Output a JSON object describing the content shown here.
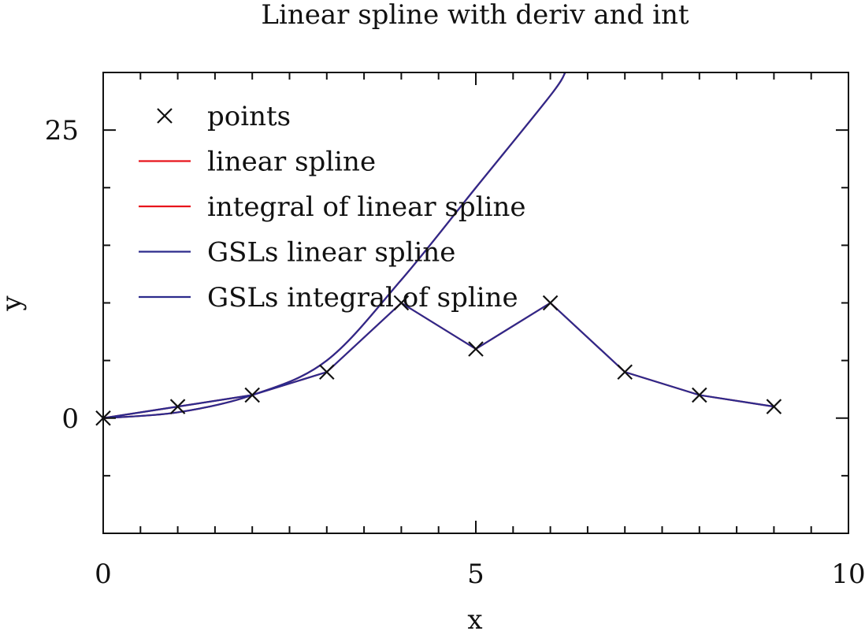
{
  "chart_data": {
    "type": "line",
    "title": "Linear spline with deriv and int",
    "xlabel": "x",
    "ylabel": "y",
    "xlim": [
      0,
      10
    ],
    "ylim": [
      -10,
      30
    ],
    "x_ticks": [
      0,
      5,
      10
    ],
    "y_ticks": [
      0,
      25
    ],
    "x_tick_labels": [
      "0",
      "5",
      "10"
    ],
    "y_tick_labels": [
      "0",
      "25"
    ],
    "grid": false,
    "legend_position": "top-left",
    "colors": {
      "red": "#e8141c",
      "navy": "#2c2a8c",
      "marker": "#111111"
    },
    "series": [
      {
        "name": "points",
        "kind": "marker",
        "x": [
          0,
          1,
          2,
          3,
          4,
          5,
          6,
          7,
          8,
          9
        ],
        "y": [
          0,
          1,
          2,
          4,
          10,
          6,
          10,
          4,
          2,
          1
        ]
      },
      {
        "name": "linear spline",
        "kind": "line",
        "color": "red",
        "x": [
          0,
          1,
          2,
          3,
          4,
          5,
          6,
          7,
          8,
          9
        ],
        "y": [
          0,
          1,
          2,
          4,
          10,
          6,
          10,
          4,
          2,
          1
        ]
      },
      {
        "name": "integral of linear spline",
        "kind": "line",
        "color": "red",
        "x": [
          0,
          1,
          2,
          3,
          4,
          5,
          6,
          6.2
        ],
        "y": [
          0,
          0.5,
          2,
          5,
          12,
          20,
          28,
          30
        ]
      },
      {
        "name": "GSLs linear spline",
        "kind": "line",
        "color": "navy",
        "x": [
          0,
          1,
          2,
          3,
          4,
          5,
          6,
          7,
          8,
          9
        ],
        "y": [
          0,
          1,
          2,
          4,
          10,
          6,
          10,
          4,
          2,
          1
        ]
      },
      {
        "name": "GSLs integral of spline",
        "kind": "line",
        "color": "navy",
        "x": [
          0,
          1,
          2,
          3,
          4,
          5,
          6,
          6.2
        ],
        "y": [
          0,
          0.5,
          2,
          5,
          12,
          20,
          28,
          30
        ]
      }
    ]
  }
}
